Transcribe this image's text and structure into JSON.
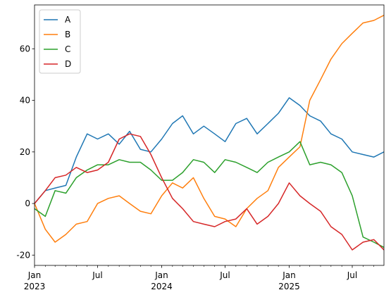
{
  "chart_data": {
    "type": "line",
    "title": "",
    "xlabel": "",
    "ylabel": "",
    "x_range": [
      "2023-01-01",
      "2025-09-30"
    ],
    "ylim": [
      -24,
      77
    ],
    "yticks": [
      -20,
      0,
      20,
      40,
      60
    ],
    "xticks": [
      {
        "date": "2023-01-01",
        "label": "Jan",
        "sublabel": "2023"
      },
      {
        "date": "2023-07-01",
        "label": "Jul",
        "sublabel": ""
      },
      {
        "date": "2024-01-01",
        "label": "Jan",
        "sublabel": "2024"
      },
      {
        "date": "2024-07-01",
        "label": "Jul",
        "sublabel": ""
      },
      {
        "date": "2025-01-01",
        "label": "Jan",
        "sublabel": "2025"
      },
      {
        "date": "2025-07-01",
        "label": "Jul",
        "sublabel": ""
      }
    ],
    "grid": false,
    "legend_position": "upper-left",
    "series": [
      {
        "name": "A",
        "color": "#1f77b4",
        "points": [
          [
            "2023-01-01",
            0
          ],
          [
            "2023-02-01",
            5
          ],
          [
            "2023-03-01",
            6
          ],
          [
            "2023-04-01",
            7
          ],
          [
            "2023-05-01",
            18
          ],
          [
            "2023-06-01",
            27
          ],
          [
            "2023-07-01",
            25
          ],
          [
            "2023-08-01",
            27
          ],
          [
            "2023-09-01",
            23
          ],
          [
            "2023-10-01",
            28
          ],
          [
            "2023-11-01",
            21
          ],
          [
            "2023-12-01",
            20
          ],
          [
            "2024-01-01",
            25
          ],
          [
            "2024-02-01",
            31
          ],
          [
            "2024-03-01",
            34
          ],
          [
            "2024-04-01",
            27
          ],
          [
            "2024-05-01",
            30
          ],
          [
            "2024-06-01",
            27
          ],
          [
            "2024-07-01",
            24
          ],
          [
            "2024-08-01",
            31
          ],
          [
            "2024-09-01",
            33
          ],
          [
            "2024-10-01",
            27
          ],
          [
            "2024-11-01",
            31
          ],
          [
            "2024-12-01",
            35
          ],
          [
            "2025-01-01",
            41
          ],
          [
            "2025-02-01",
            38
          ],
          [
            "2025-03-01",
            34
          ],
          [
            "2025-04-01",
            32
          ],
          [
            "2025-05-01",
            27
          ],
          [
            "2025-06-01",
            25
          ],
          [
            "2025-07-01",
            20
          ],
          [
            "2025-08-01",
            19
          ],
          [
            "2025-09-01",
            18
          ],
          [
            "2025-09-30",
            20
          ]
        ]
      },
      {
        "name": "B",
        "color": "#ff7f0e",
        "points": [
          [
            "2023-01-01",
            0
          ],
          [
            "2023-02-01",
            -10
          ],
          [
            "2023-03-01",
            -15
          ],
          [
            "2023-04-01",
            -12
          ],
          [
            "2023-05-01",
            -8
          ],
          [
            "2023-06-01",
            -7
          ],
          [
            "2023-07-01",
            0
          ],
          [
            "2023-08-01",
            2
          ],
          [
            "2023-09-01",
            3
          ],
          [
            "2023-10-01",
            0
          ],
          [
            "2023-11-01",
            -3
          ],
          [
            "2023-12-01",
            -4
          ],
          [
            "2024-01-01",
            3
          ],
          [
            "2024-02-01",
            8
          ],
          [
            "2024-03-01",
            6
          ],
          [
            "2024-04-01",
            10
          ],
          [
            "2024-05-01",
            2
          ],
          [
            "2024-06-01",
            -5
          ],
          [
            "2024-07-01",
            -6
          ],
          [
            "2024-08-01",
            -9
          ],
          [
            "2024-09-01",
            -2
          ],
          [
            "2024-10-01",
            2
          ],
          [
            "2024-11-01",
            5
          ],
          [
            "2024-12-01",
            14
          ],
          [
            "2025-01-01",
            18
          ],
          [
            "2025-02-01",
            22
          ],
          [
            "2025-03-01",
            40
          ],
          [
            "2025-04-01",
            48
          ],
          [
            "2025-05-01",
            56
          ],
          [
            "2025-06-01",
            62
          ],
          [
            "2025-07-01",
            66
          ],
          [
            "2025-08-01",
            70
          ],
          [
            "2025-09-01",
            71
          ],
          [
            "2025-09-30",
            73
          ]
        ]
      },
      {
        "name": "C",
        "color": "#2ca02c",
        "points": [
          [
            "2023-01-01",
            -2
          ],
          [
            "2023-02-01",
            -5
          ],
          [
            "2023-03-01",
            5
          ],
          [
            "2023-04-01",
            4
          ],
          [
            "2023-05-01",
            10
          ],
          [
            "2023-06-01",
            13
          ],
          [
            "2023-07-01",
            15
          ],
          [
            "2023-08-01",
            15
          ],
          [
            "2023-09-01",
            17
          ],
          [
            "2023-10-01",
            16
          ],
          [
            "2023-11-01",
            16
          ],
          [
            "2023-12-01",
            13
          ],
          [
            "2024-01-01",
            9
          ],
          [
            "2024-02-01",
            9
          ],
          [
            "2024-03-01",
            12
          ],
          [
            "2024-04-01",
            17
          ],
          [
            "2024-05-01",
            16
          ],
          [
            "2024-06-01",
            12
          ],
          [
            "2024-07-01",
            17
          ],
          [
            "2024-08-01",
            16
          ],
          [
            "2024-09-01",
            14
          ],
          [
            "2024-10-01",
            12
          ],
          [
            "2024-11-01",
            16
          ],
          [
            "2024-12-01",
            18
          ],
          [
            "2025-01-01",
            20
          ],
          [
            "2025-02-01",
            24
          ],
          [
            "2025-03-01",
            15
          ],
          [
            "2025-04-01",
            16
          ],
          [
            "2025-05-01",
            15
          ],
          [
            "2025-06-01",
            12
          ],
          [
            "2025-07-01",
            3
          ],
          [
            "2025-08-01",
            -13
          ],
          [
            "2025-09-01",
            -15
          ],
          [
            "2025-09-30",
            -17
          ]
        ]
      },
      {
        "name": "D",
        "color": "#d62728",
        "points": [
          [
            "2023-01-01",
            0
          ],
          [
            "2023-02-01",
            5
          ],
          [
            "2023-03-01",
            10
          ],
          [
            "2023-04-01",
            11
          ],
          [
            "2023-05-01",
            14
          ],
          [
            "2023-06-01",
            12
          ],
          [
            "2023-07-01",
            13
          ],
          [
            "2023-08-01",
            16
          ],
          [
            "2023-09-01",
            25
          ],
          [
            "2023-10-01",
            27
          ],
          [
            "2023-11-01",
            26
          ],
          [
            "2023-12-01",
            19
          ],
          [
            "2024-01-01",
            10
          ],
          [
            "2024-02-01",
            2
          ],
          [
            "2024-03-01",
            -2
          ],
          [
            "2024-04-01",
            -7
          ],
          [
            "2024-05-01",
            -8
          ],
          [
            "2024-06-01",
            -9
          ],
          [
            "2024-07-01",
            -7
          ],
          [
            "2024-08-01",
            -6
          ],
          [
            "2024-09-01",
            -2
          ],
          [
            "2024-10-01",
            -8
          ],
          [
            "2024-11-01",
            -5
          ],
          [
            "2024-12-01",
            0
          ],
          [
            "2025-01-01",
            8
          ],
          [
            "2025-02-01",
            3
          ],
          [
            "2025-03-01",
            0
          ],
          [
            "2025-04-01",
            -3
          ],
          [
            "2025-05-01",
            -9
          ],
          [
            "2025-06-01",
            -12
          ],
          [
            "2025-07-01",
            -18
          ],
          [
            "2025-08-01",
            -15
          ],
          [
            "2025-09-01",
            -14
          ],
          [
            "2025-09-30",
            -18
          ]
        ]
      }
    ]
  }
}
